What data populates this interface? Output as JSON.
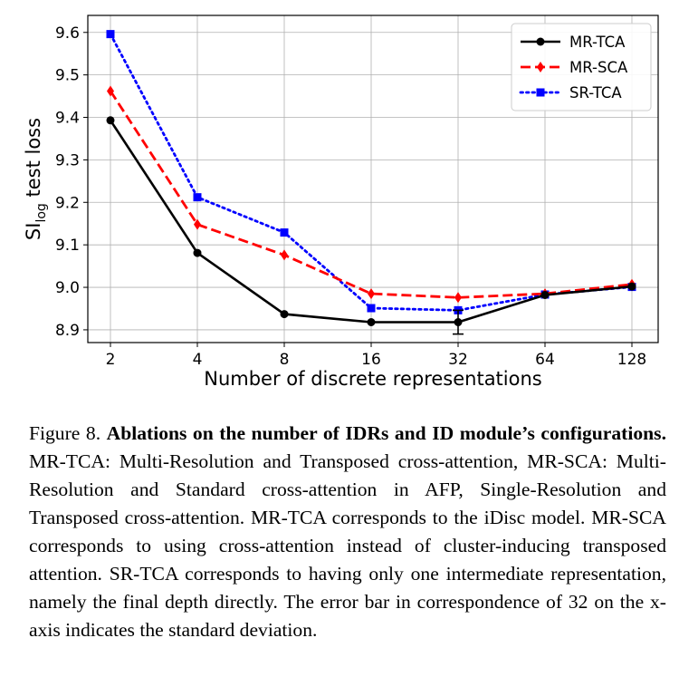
{
  "chart_data": {
    "type": "line",
    "xlabel": "Number of discrete representations",
    "ylabel_main": "SI",
    "ylabel_sub": "log",
    "ylabel_rest": " test loss",
    "categories": [
      "2",
      "4",
      "8",
      "16",
      "32",
      "64",
      "128"
    ],
    "yticks": [
      "8.9",
      "9.0",
      "9.1",
      "9.2",
      "9.3",
      "9.4",
      "9.5",
      "9.6"
    ],
    "ylim": [
      8.87,
      9.64
    ],
    "grid": true,
    "legend_position": "top-right",
    "series": [
      {
        "name": "MR-TCA",
        "color": "#000000",
        "style": "solid",
        "marker": "circle",
        "values": [
          9.393,
          9.081,
          8.937,
          8.918,
          8.918,
          8.982,
          9.002
        ]
      },
      {
        "name": "MR-SCA",
        "color": "#ff0000",
        "style": "dashed",
        "marker": "diamond",
        "values": [
          9.462,
          9.148,
          9.076,
          8.985,
          8.976,
          8.985,
          9.007
        ]
      },
      {
        "name": "SR-TCA",
        "color": "#0000ff",
        "style": "dotted",
        "marker": "square",
        "values": [
          9.596,
          9.212,
          9.129,
          8.951,
          8.946,
          8.983,
          9.001
        ]
      }
    ],
    "error_bar": {
      "series": "MR-TCA",
      "category": "32",
      "low": 8.89,
      "high": 8.946
    }
  },
  "caption": {
    "label": "Figure 8.",
    "title": "Ablations on the number of IDRs and ID module’s configurations.",
    "body": "MR-TCA: Multi-Resolution and Transposed cross-attention, MR-SCA: Multi-Resolution and Standard cross-attention in AFP, Single-Resolution and Transposed cross-attention. MR-TCA corresponds to the iDisc model. MR-SCA corresponds to us­ing cross-attention instead of cluster-inducing transposed attention. SR-TCA corresponds to having only one intermediate representa­tion, namely the final depth directly. The error bar in correspon­dence of 32 on the x-axis indicates the standard deviation."
  }
}
